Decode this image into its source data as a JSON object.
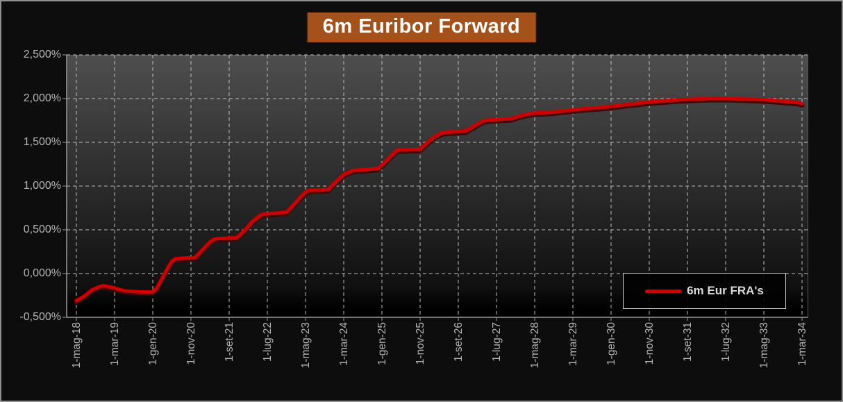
{
  "title": "6m Euribor Forward",
  "colors": {
    "background": "#0d0d0d",
    "frame_border": "#8f8f8f",
    "title_bg": "#a4511a",
    "title_text": "#ffffff",
    "axis_text": "#b5b5b5",
    "gridline": "#bdbdbd",
    "axis_line": "#9a9a9a",
    "series_line": "#cc0000",
    "plot_gradient_top": "#4e4e4e",
    "plot_gradient_bottom": "#000000",
    "legend_border": "#cfcfcf",
    "legend_bg": "#020202",
    "legend_text": "#d9d9d9"
  },
  "chart_data": {
    "type": "line",
    "title": "6m Euribor Forward",
    "xlabel": "",
    "ylabel": "",
    "y_unit": "percent",
    "ylim": [
      -0.5,
      2.5
    ],
    "y_tick_step": 0.5,
    "y_tick_labels": [
      "2,500%",
      "2,000%",
      "1,500%",
      "1,000%",
      "0,500%",
      "0,000%",
      "-0,500%"
    ],
    "x_tick_labels": [
      "1-mag-18",
      "1-mar-19",
      "1-gen-20",
      "1-nov-20",
      "1-set-21",
      "1-lug-22",
      "1-mag-23",
      "1-mar-24",
      "1-gen-25",
      "1-nov-25",
      "1-set-26",
      "1-lug-27",
      "1-mag-28",
      "1-mar-29",
      "1-gen-30",
      "1-nov-30",
      "1-set-31",
      "1-lug-32",
      "1-mag-33",
      "1-mar-34"
    ],
    "x_tick_interval_months": 10,
    "x_span_months": 190,
    "grid": true,
    "legend": {
      "position": "inside-bottom-right",
      "entries": [
        "6m Eur FRA's"
      ]
    },
    "series": [
      {
        "name": "6m Eur FRA's",
        "color": "#cc0000",
        "points_months_vs_pct": [
          [
            0,
            -0.31
          ],
          [
            2,
            -0.26
          ],
          [
            4,
            -0.19
          ],
          [
            6,
            -0.15
          ],
          [
            7,
            -0.14
          ],
          [
            9,
            -0.155
          ],
          [
            11,
            -0.18
          ],
          [
            13,
            -0.2
          ],
          [
            15,
            -0.205
          ],
          [
            17,
            -0.21
          ],
          [
            20,
            -0.21
          ],
          [
            21,
            -0.17
          ],
          [
            22,
            -0.09
          ],
          [
            23,
            -0.01
          ],
          [
            24,
            0.07
          ],
          [
            25,
            0.14
          ],
          [
            26,
            0.17
          ],
          [
            28,
            0.175
          ],
          [
            31,
            0.18
          ],
          [
            33,
            0.27
          ],
          [
            35,
            0.36
          ],
          [
            36,
            0.39
          ],
          [
            37,
            0.4
          ],
          [
            40,
            0.405
          ],
          [
            42,
            0.41
          ],
          [
            44,
            0.49
          ],
          [
            46,
            0.59
          ],
          [
            48,
            0.66
          ],
          [
            49,
            0.68
          ],
          [
            52,
            0.69
          ],
          [
            55,
            0.7
          ],
          [
            57,
            0.79
          ],
          [
            59,
            0.89
          ],
          [
            60,
            0.93
          ],
          [
            61,
            0.95
          ],
          [
            64,
            0.955
          ],
          [
            66,
            0.96
          ],
          [
            68,
            1.05
          ],
          [
            70,
            1.13
          ],
          [
            72,
            1.17
          ],
          [
            73,
            1.18
          ],
          [
            76,
            1.19
          ],
          [
            79,
            1.2
          ],
          [
            81,
            1.28
          ],
          [
            83,
            1.37
          ],
          [
            84,
            1.41
          ],
          [
            87,
            1.415
          ],
          [
            90,
            1.42
          ],
          [
            92,
            1.5
          ],
          [
            94,
            1.57
          ],
          [
            96,
            1.61
          ],
          [
            99,
            1.62
          ],
          [
            102,
            1.63
          ],
          [
            104,
            1.68
          ],
          [
            106,
            1.73
          ],
          [
            107,
            1.75
          ],
          [
            110,
            1.76
          ],
          [
            114,
            1.77
          ],
          [
            116,
            1.8
          ],
          [
            118,
            1.82
          ],
          [
            120,
            1.835
          ],
          [
            123,
            1.84
          ],
          [
            126,
            1.85
          ],
          [
            129,
            1.865
          ],
          [
            132,
            1.88
          ],
          [
            135,
            1.89
          ],
          [
            138,
            1.9
          ],
          [
            141,
            1.915
          ],
          [
            144,
            1.93
          ],
          [
            147,
            1.945
          ],
          [
            150,
            1.96
          ],
          [
            153,
            1.97
          ],
          [
            156,
            1.98
          ],
          [
            160,
            1.99
          ],
          [
            163,
            1.995
          ],
          [
            166,
            2.0
          ],
          [
            170,
            2.0
          ],
          [
            174,
            1.995
          ],
          [
            178,
            1.99
          ],
          [
            182,
            1.98
          ],
          [
            186,
            1.965
          ],
          [
            189,
            1.955
          ],
          [
            190,
            1.94
          ]
        ]
      }
    ]
  }
}
